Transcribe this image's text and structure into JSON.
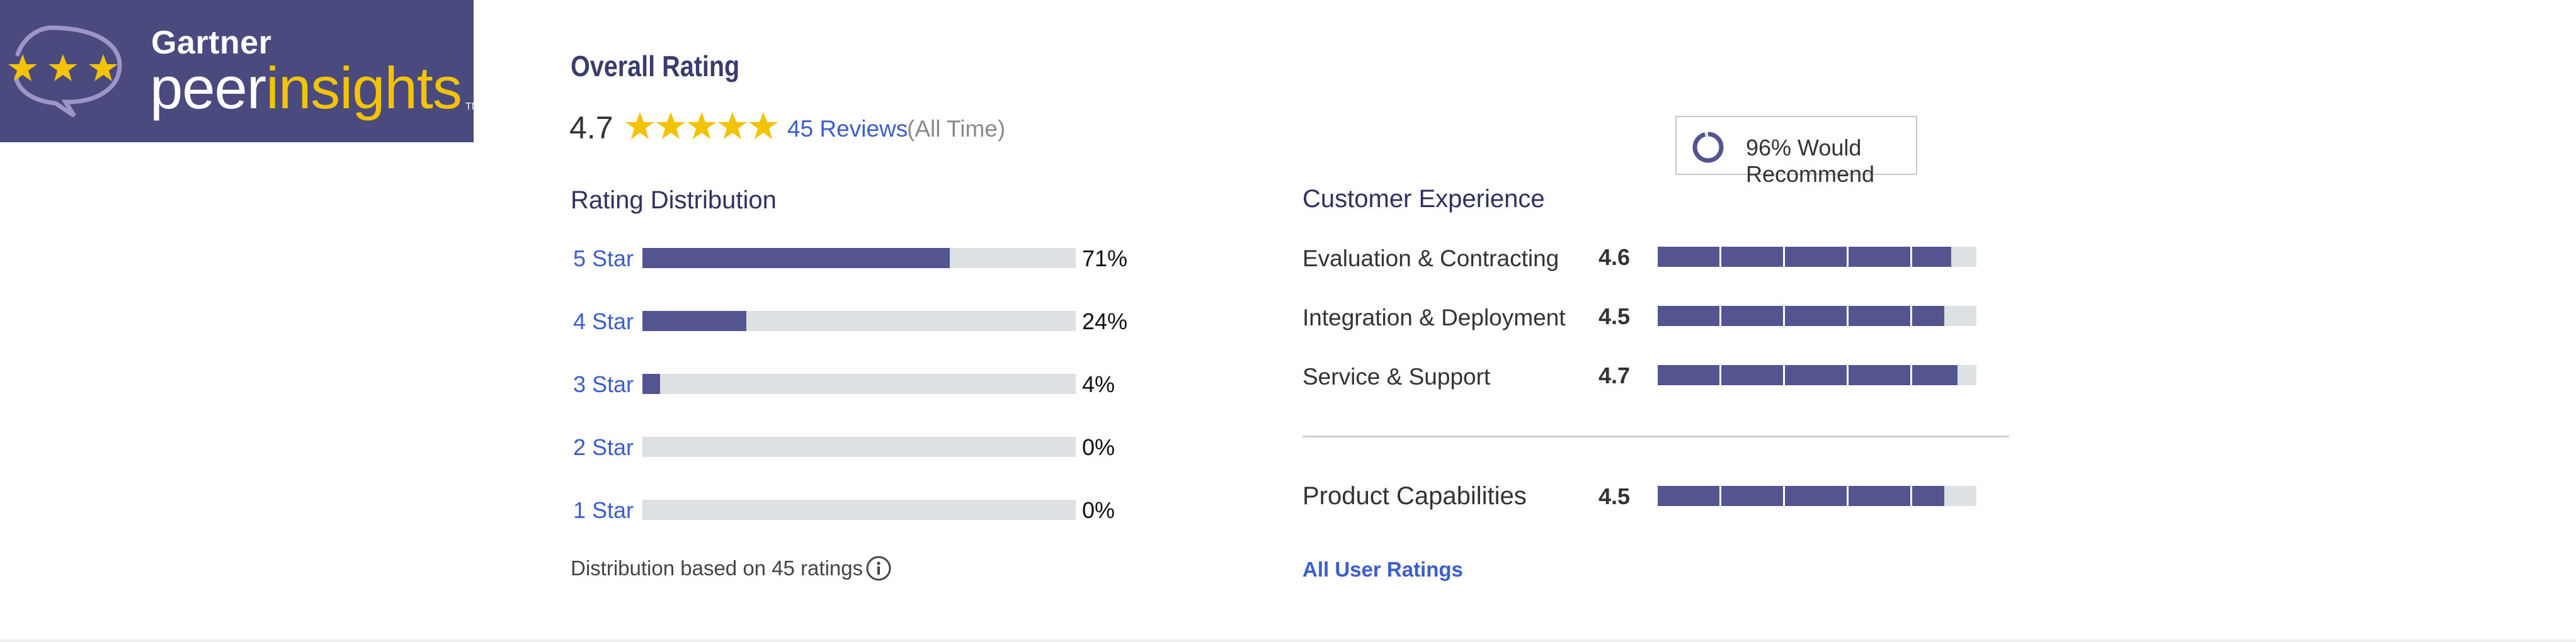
{
  "logo": {
    "brand": "Gartner",
    "product_part1": "peer",
    "product_part2": "insights",
    "trademark": "TM"
  },
  "overall": {
    "heading": "Overall Rating",
    "score": "4.7",
    "stars": 5,
    "reviews_link": "45 Reviews",
    "period": "(All Time)"
  },
  "recommend": {
    "label": "96% Would Recommend",
    "percent": 96
  },
  "distribution": {
    "heading": "Rating Distribution",
    "rows": [
      {
        "label": "5 Star",
        "pct_label": "71%",
        "pct": 71
      },
      {
        "label": "4 Star",
        "pct_label": "24%",
        "pct": 24
      },
      {
        "label": "3 Star",
        "pct_label": "4%",
        "pct": 4
      },
      {
        "label": "2 Star",
        "pct_label": "0%",
        "pct": 0
      },
      {
        "label": "1 Star",
        "pct_label": "0%",
        "pct": 0
      }
    ],
    "footnote": "Distribution based on 45 ratings"
  },
  "customer_experience": {
    "heading": "Customer Experience",
    "rows": [
      {
        "label": "Evaluation & Contracting",
        "score": "4.6",
        "value": 4.6
      },
      {
        "label": "Integration & Deployment",
        "score": "4.5",
        "value": 4.5
      },
      {
        "label": "Service & Support",
        "score": "4.7",
        "value": 4.7
      }
    ]
  },
  "product_capabilities": {
    "heading": "Product Capabilities",
    "score": "4.5",
    "value": 4.5
  },
  "all_ratings_link": "All User Ratings",
  "colors": {
    "logo_bg": "#4a4a7e",
    "bar_fill": "#545490",
    "bar_track": "#dde1e3",
    "link": "#3b5ecb",
    "star": "#f3c300"
  }
}
